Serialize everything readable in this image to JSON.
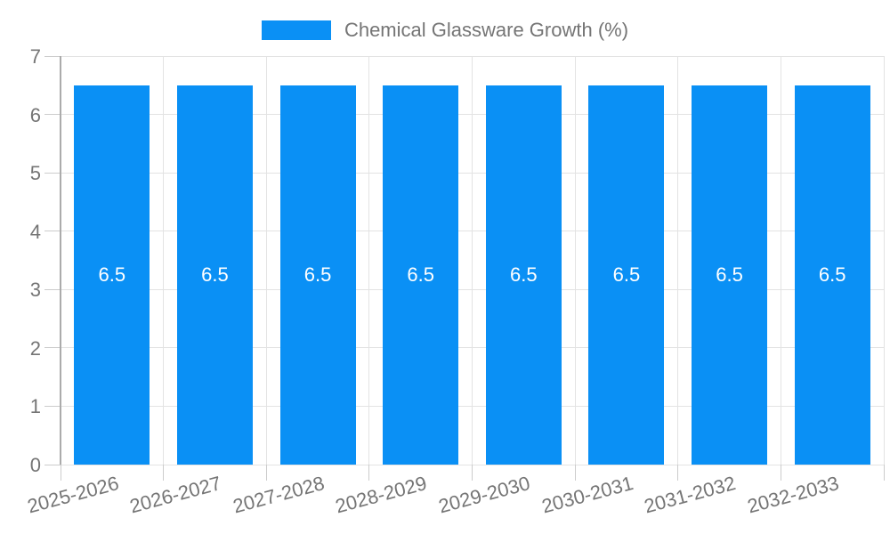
{
  "chart_data": {
    "type": "bar",
    "title": "Chemical Glassware Growth (%)",
    "legend": {
      "label": "Chemical Glassware Growth (%)",
      "position": "top-center"
    },
    "categories": [
      "2025-2026",
      "2026-2027",
      "2027-2028",
      "2028-2029",
      "2029-2030",
      "2030-2031",
      "2031-2032",
      "2032-2033"
    ],
    "series": [
      {
        "name": "Chemical Glassware Growth (%)",
        "values": [
          6.5,
          6.5,
          6.5,
          6.5,
          6.5,
          6.5,
          6.5,
          6.5
        ],
        "data_labels": [
          "6.5",
          "6.5",
          "6.5",
          "6.5",
          "6.5",
          "6.5",
          "6.5",
          "6.5"
        ]
      }
    ],
    "xlabel": "",
    "ylabel": "",
    "ylim": [
      0,
      7
    ],
    "y_ticks": [
      "0",
      "1",
      "2",
      "3",
      "4",
      "5",
      "6",
      "7"
    ],
    "grid": true,
    "colors": {
      "bar": "#0a90f5",
      "data_label": "#ffffff",
      "axis_text": "#757575",
      "gridline": "#e3e3e3",
      "axis_line": "#ababab",
      "tick": "#cccccc"
    }
  }
}
